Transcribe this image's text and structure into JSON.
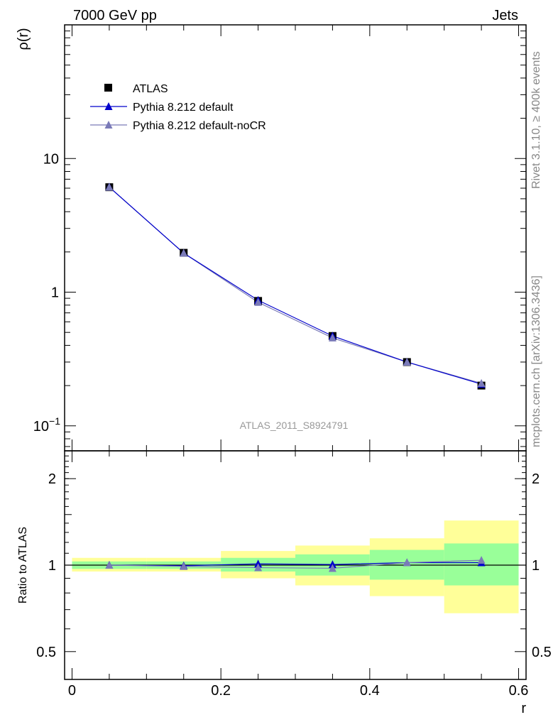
{
  "header": {
    "left_label": "7000 GeV pp",
    "right_label": "Jets"
  },
  "side_labels": {
    "rivet": "Rivet 3.1.10, ≥ 400k events",
    "mcplots": "mcplots.cern.ch [arXiv:1306.3436]"
  },
  "analysis_label": "ATLAS_2011_S8924791",
  "colors": {
    "atlas": "#000000",
    "pythia_default": "#0000cc",
    "pythia_nocr": "#7a7ab8",
    "band_inner": "#99ff99",
    "band_outer": "#ffff99"
  },
  "chart_data": [
    {
      "type": "line",
      "panel": "main",
      "ylabel": "ρ(r)",
      "xlabel": "",
      "yscale": "log",
      "xlim": [
        -0.01,
        0.61
      ],
      "ylim": [
        0.065,
        100
      ],
      "yticks": [
        0.1,
        1,
        10
      ],
      "ytick_labels": [
        {
          "base": "10",
          "exp": "−1"
        },
        {
          "base": "1",
          "exp": ""
        },
        {
          "base": "10",
          "exp": ""
        }
      ],
      "x": [
        0.05,
        0.15,
        0.25,
        0.35,
        0.45,
        0.55
      ],
      "series": [
        {
          "name": "ATLAS",
          "marker": "square",
          "values": [
            6.1,
            1.97,
            0.86,
            0.47,
            0.3,
            0.2
          ]
        },
        {
          "name": "Pythia 8.212 default",
          "marker": "triangle",
          "values": [
            6.12,
            1.96,
            0.87,
            0.47,
            0.3,
            0.205
          ]
        },
        {
          "name": "Pythia 8.212 default-noCR",
          "marker": "triangle",
          "values": [
            6.1,
            1.96,
            0.84,
            0.455,
            0.3,
            0.208
          ]
        }
      ],
      "legend": [
        "ATLAS",
        "Pythia 8.212 default",
        "Pythia 8.212 default-noCR"
      ],
      "legend_position": "top-left"
    },
    {
      "type": "line",
      "panel": "ratio",
      "ylabel": "Ratio to ATLAS",
      "xlabel": "r",
      "yscale": "log",
      "xlim": [
        -0.01,
        0.61
      ],
      "ylim": [
        0.4,
        2.5
      ],
      "yticks": [
        0.5,
        1,
        2
      ],
      "ytick_labels": [
        "0.5",
        "1",
        "2"
      ],
      "xticks": [
        0,
        0.2,
        0.4,
        0.6
      ],
      "xtick_labels": [
        "0",
        "0.2",
        "0.4",
        "0.6"
      ],
      "bins": [
        [
          0.0,
          0.1
        ],
        [
          0.1,
          0.2
        ],
        [
          0.2,
          0.3
        ],
        [
          0.3,
          0.4
        ],
        [
          0.4,
          0.5
        ],
        [
          0.5,
          0.6
        ]
      ],
      "band_inner": [
        [
          0.97,
          1.03
        ],
        [
          0.97,
          1.03
        ],
        [
          0.95,
          1.06
        ],
        [
          0.92,
          1.09
        ],
        [
          0.89,
          1.13
        ],
        [
          0.85,
          1.19
        ]
      ],
      "band_outer": [
        [
          0.95,
          1.06
        ],
        [
          0.95,
          1.06
        ],
        [
          0.9,
          1.12
        ],
        [
          0.85,
          1.17
        ],
        [
          0.78,
          1.24
        ],
        [
          0.68,
          1.43
        ]
      ],
      "x": [
        0.05,
        0.15,
        0.25,
        0.35,
        0.45,
        0.55
      ],
      "series": [
        {
          "name": "Pythia 8.212 default",
          "values": [
            1.0,
            0.995,
            1.01,
            1.005,
            1.02,
            1.02
          ]
        },
        {
          "name": "Pythia 8.212 default-noCR",
          "values": [
            1.0,
            0.99,
            0.98,
            0.975,
            1.02,
            1.04
          ]
        }
      ]
    }
  ]
}
